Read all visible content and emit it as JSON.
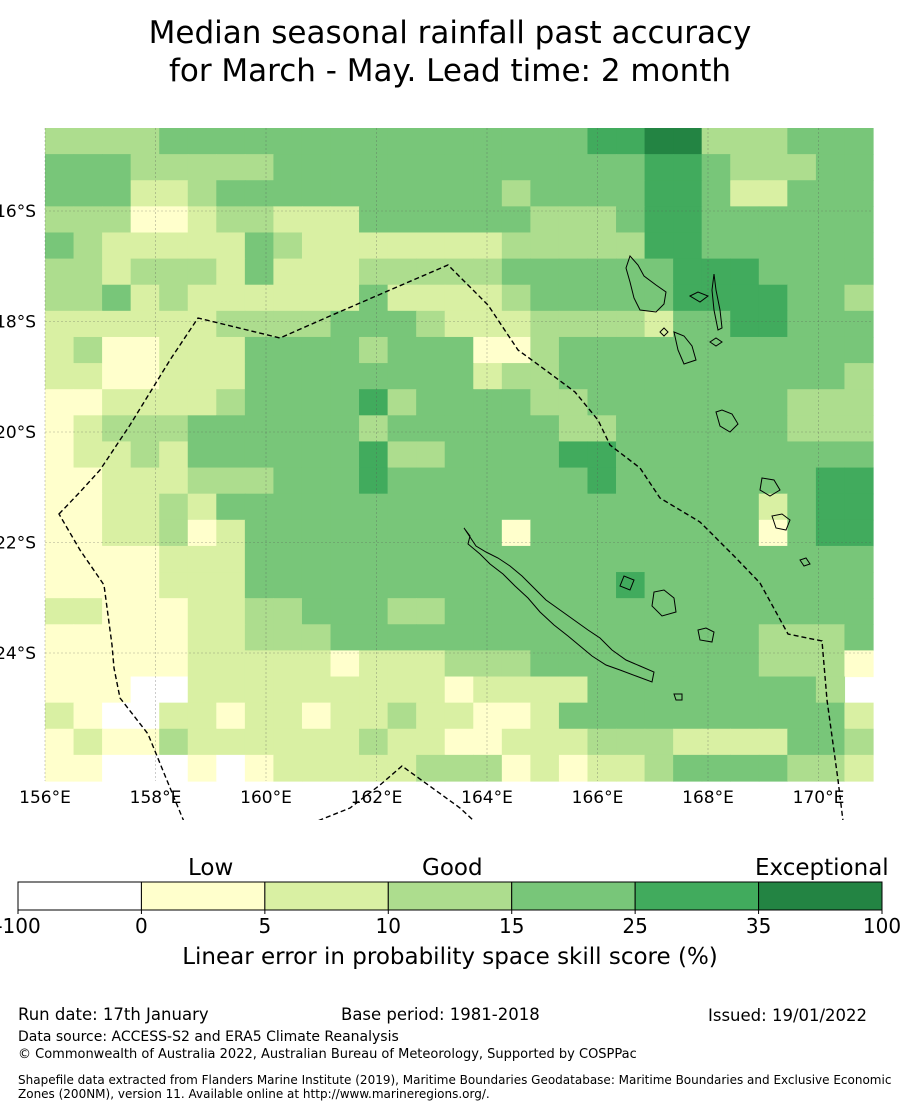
{
  "title": {
    "line1": "Median seasonal rainfall past accuracy",
    "line2": "for March - May. Lead time: 2 month"
  },
  "map": {
    "lon_ticks": [
      "156°E",
      "158°E",
      "160°E",
      "162°E",
      "164°E",
      "166°E",
      "168°E",
      "170°E"
    ],
    "lat_ticks": [
      "16°S",
      "18°S",
      "20°S",
      "22°S",
      "24°S"
    ],
    "grid_colors": [
      "#ffffff",
      "#ffffcc",
      "#d9f0a3",
      "#addd8e",
      "#78c679",
      "#41ab5d",
      "#238443"
    ],
    "grid_rows": [
      "33334444444444444445566333444",
      "44433333444444444444455433344",
      "44422344444444443444455422444",
      "33311233222444444333455444444",
      "43222224322222223333355444444",
      "33233324222333334444445554444",
      "33423222222422223444445555443",
      "22222233334443222333324455444",
      "23112224444344411344444444444",
      "22112224444444423344444444443",
      "11222234444534444334444444333",
      "12333444444344444433444444333",
      "12232444444533444455444444444",
      "11222333444544444445444444455",
      "11223244444444444444444442455",
      "11223124444444441444444441455",
      "11112224444444444444444444444",
      "11112224444444444444544444444",
      "22111223344433444444444444444",
      "11111223334444444444444443334",
      "11111222221222333444444443331",
      "1110022222222212222444444443",
      "21002212212232211244444444442",
      "12113222222322112223332222443",
      "11000101222223331212234444332"
    ]
  },
  "colorbar": {
    "category_labels": [
      "Low",
      "Good",
      "Exceptional"
    ],
    "tick_labels": [
      "-100",
      "0",
      "5",
      "10",
      "15",
      "25",
      "35",
      "100"
    ],
    "colors": [
      "#ffffff",
      "#ffffcc",
      "#d9f0a3",
      "#addd8e",
      "#78c679",
      "#41ab5d",
      "#238443"
    ],
    "title": "Linear error in probability space skill score (%)"
  },
  "footer": {
    "run_date": "Run date: 17th January",
    "base_period": "Base period: 1981-2018",
    "issued": "Issued: 19/01/2022",
    "data_source": "Data source: ACCESS-S2 and ERA5 Climate Reanalysis",
    "copyright": "© Commonwealth of Australia 2022, Australian Bureau of Meteorology, Supported by COSPPac",
    "shapefile_line1": "Shapefile data extracted from Flanders Marine Institute (2019), Maritime Boundaries Geodatabase: Maritime Boundaries and Exclusive Economic",
    "shapefile_line2": "Zones (200NM), version 11. Available online at http://www.marineregions.org/."
  }
}
